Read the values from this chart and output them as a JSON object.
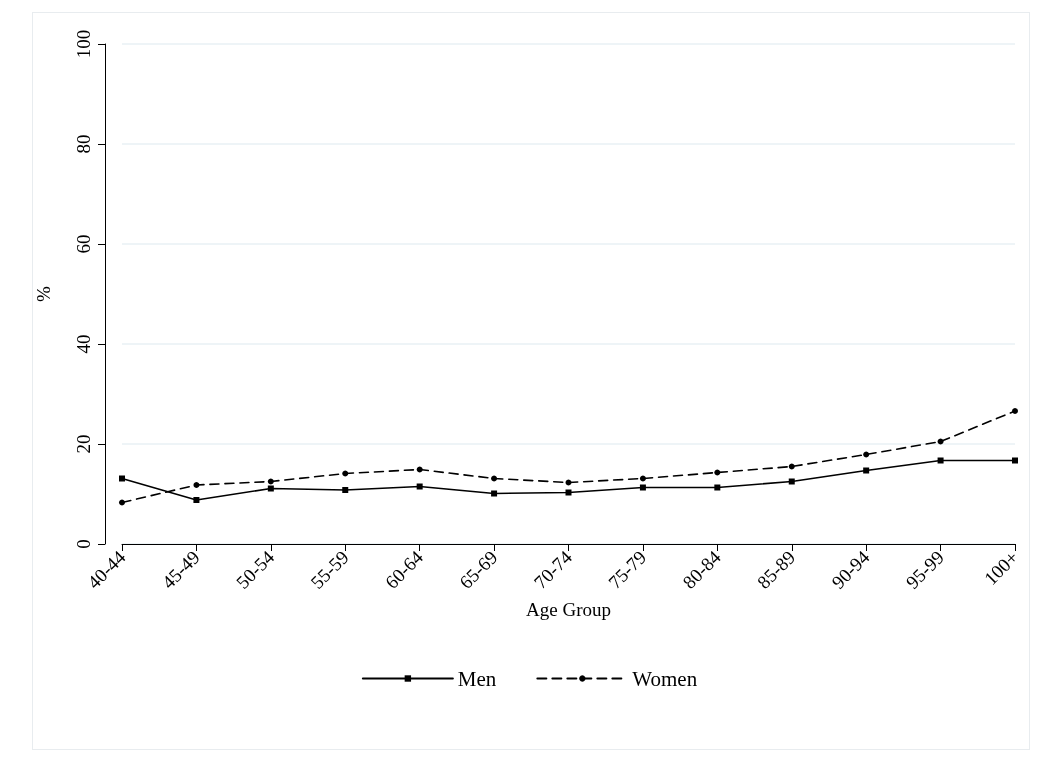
{
  "chart_data": {
    "type": "line",
    "xlabel": "Age Group",
    "ylabel": "%",
    "categories": [
      "40-44",
      "45-49",
      "50-54",
      "55-59",
      "60-64",
      "65-69",
      "70-74",
      "75-79",
      "80-84",
      "85-89",
      "90-94",
      "95-99",
      "100+"
    ],
    "series": [
      {
        "name": "Men",
        "color": "#000000",
        "marker": "square",
        "line_style": "solid",
        "values": [
          13.1,
          8.8,
          11.1,
          10.8,
          11.5,
          10.1,
          10.3,
          11.3,
          11.3,
          12.5,
          14.7,
          16.7,
          16.7
        ]
      },
      {
        "name": "Women",
        "color": "#000000",
        "marker": "circle",
        "line_style": "dashed",
        "values": [
          8.3,
          11.8,
          12.5,
          14.1,
          14.9,
          13.1,
          12.3,
          13.1,
          14.3,
          15.5,
          17.9,
          20.5,
          26.6
        ]
      }
    ],
    "ylim": [
      0,
      100
    ],
    "yticks": [
      0,
      20,
      40,
      60,
      80,
      100
    ],
    "grid": "y",
    "legend": "bottom"
  }
}
